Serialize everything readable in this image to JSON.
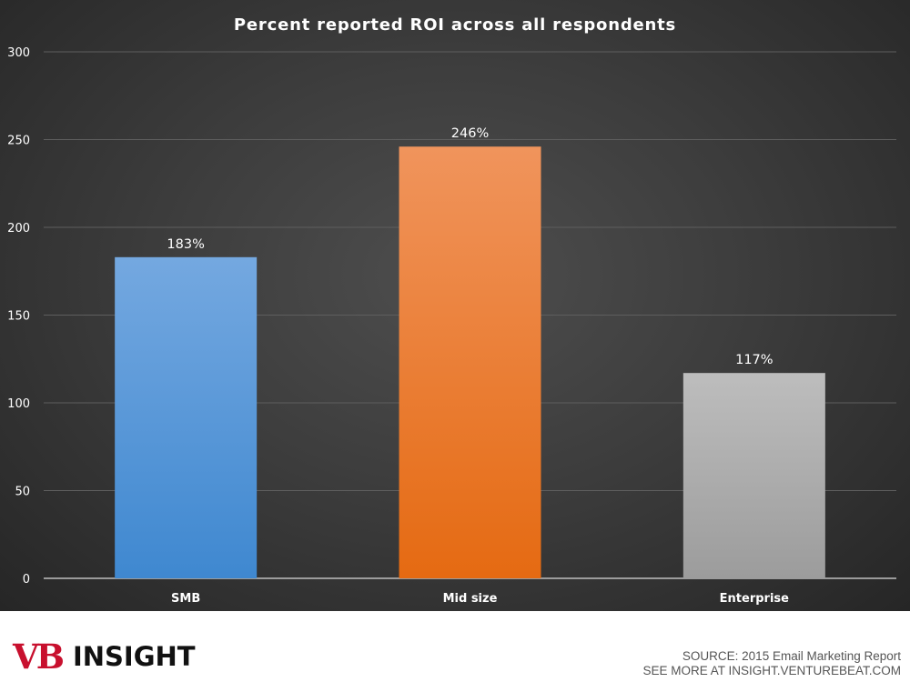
{
  "chart_data": {
    "type": "bar",
    "title": "Percent reported ROI across all respondents",
    "categories": [
      "SMB",
      "Mid size",
      "Enterprise"
    ],
    "values": [
      183,
      246,
      117
    ],
    "data_labels": [
      "183%",
      "246%",
      "117%"
    ],
    "colors": [
      "#5b9bd5",
      "#f07a26",
      "#a6a6a6"
    ],
    "y_ticks": [
      "0",
      "50",
      "100",
      "150",
      "200",
      "250",
      "300"
    ],
    "ylim": [
      0,
      300
    ],
    "grid": true,
    "xlabel": "",
    "ylabel": ""
  },
  "footer": {
    "logo_vb": "VB",
    "logo_insight": "INSIGHT",
    "source_line": "SOURCE: 2015 Email Marketing Report",
    "link_line": "SEE MORE AT INSIGHT.VENTUREBEAT.COM"
  }
}
